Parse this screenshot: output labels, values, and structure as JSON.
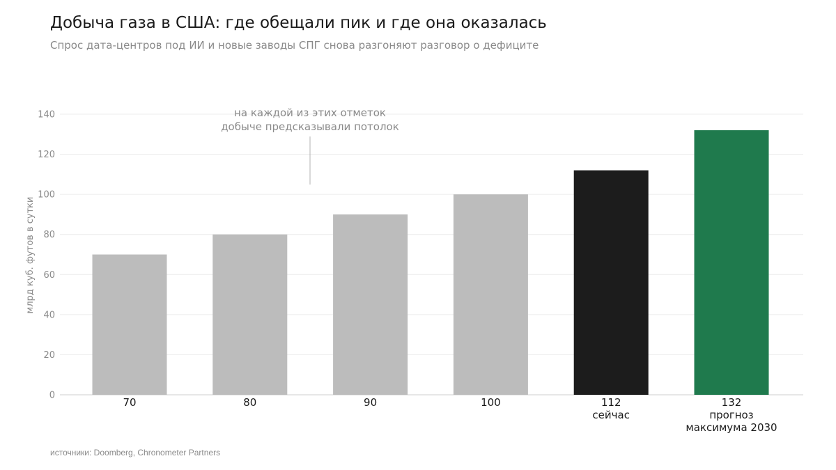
{
  "header": {
    "title": "Добыча газа в США: где обещали пик и где она оказалась",
    "subtitle": "Спрос дата-центров под ИИ и новые заводы СПГ снова разгоняют разговор о дефиците"
  },
  "footer": {
    "source": "источники: Doomberg, Chronometer Partners"
  },
  "colors": {
    "past_forecast": "#bcbcbc",
    "current": "#1c1c1c",
    "forecast_2030": "#1f7a4d",
    "grid": "#ececec",
    "axis": "#cfcfcf",
    "annotation_line": "#bdbdbd"
  },
  "chart_data": {
    "type": "bar",
    "title": "Добыча газа в США: где обещали пик и где она оказалась",
    "subtitle": "Спрос дата-центров под ИИ и новые заводы СПГ снова разгоняют разговор о дефиците",
    "ylabel": "млрд куб. футов в сутки",
    "xlabel": "",
    "ylim": [
      0,
      140
    ],
    "yticks": [
      "0",
      "20",
      "40",
      "60",
      "80",
      "100",
      "120",
      "140"
    ],
    "grid": true,
    "categories": [
      [
        "70"
      ],
      [
        "80"
      ],
      [
        "90"
      ],
      [
        "100"
      ],
      [
        "112",
        "сейчас"
      ],
      [
        "132",
        "прогноз",
        "максимума 2030"
      ]
    ],
    "values": [
      70,
      80,
      90,
      100,
      112,
      132
    ],
    "bar_colors": [
      "past_forecast",
      "past_forecast",
      "past_forecast",
      "past_forecast",
      "current",
      "forecast_2030"
    ],
    "annotation": {
      "lines": [
        "на каждой из этих отметок",
        "добыче предсказывали потолок"
      ]
    }
  }
}
